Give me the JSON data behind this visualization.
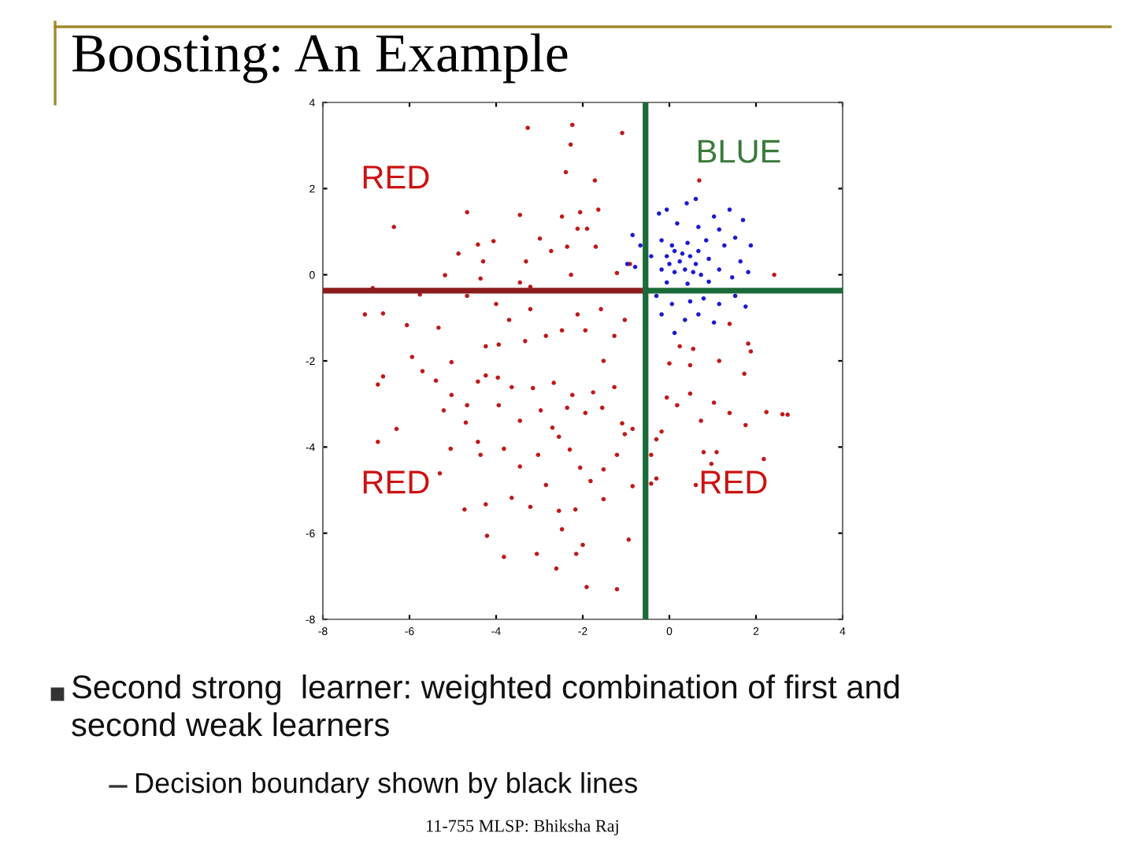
{
  "chart_data": {
    "type": "scatter",
    "title": "Boosting: An Example",
    "xlim": [
      -8,
      4
    ],
    "ylim": [
      -8,
      4
    ],
    "xticks": [
      -8,
      -6,
      -4,
      -2,
      0,
      2,
      4
    ],
    "yticks": [
      -8,
      -6,
      -4,
      -2,
      0,
      2,
      4
    ],
    "grid": false,
    "series": [
      {
        "marker": "circle",
        "color": "#c01818",
        "x": [
          -3.27,
          -2.24,
          -2.28,
          -1.09,
          -2.39,
          -1.72,
          -4.67,
          -3.45,
          -2.48,
          -2.06,
          -1.64,
          -6.36,
          -2.12,
          -1.9,
          -2.99,
          -4.06,
          -4.42,
          -4.87,
          -1.7,
          -2.73,
          -2.36,
          -4.3,
          -3.31,
          -5.18,
          -4.36,
          -3.45,
          -3.21,
          -2.27,
          -1.21,
          -0.91,
          -6.85,
          -5.76,
          -7.03,
          -6.61,
          -6.06,
          -5.33,
          -4.67,
          -4.0,
          -3.7,
          -3.21,
          -2.85,
          -2.48,
          -2.12,
          -1.94,
          -1.58,
          -1.27,
          -1.03,
          -4.24,
          -3.94,
          -3.33,
          -5.03,
          -5.94,
          0.24,
          0.55,
          1.82,
          1.88,
          2.42,
          1.39,
          0.69,
          -6.73,
          -6.61,
          -5.7,
          -5.39,
          -5.21,
          -5.03,
          -4.67,
          -4.7,
          -4.42,
          -4.24,
          -3.96,
          -3.94,
          -3.64,
          -3.45,
          -3.15,
          -2.97,
          -2.7,
          -2.67,
          -2.36,
          -2.24,
          -1.94,
          -1.76,
          -1.55,
          -1.27,
          -1.09,
          -0.85,
          -1.52,
          -6.73,
          -6.3,
          -5.05,
          -5.3,
          -4.42,
          -4.36,
          -3.82,
          -3.45,
          -3.03,
          -2.55,
          -2.3,
          -2.06,
          -1.82,
          -1.52,
          -1.21,
          -1.03,
          -0.85,
          -3.64,
          -4.24,
          -3.21,
          -2.85,
          -2.55,
          -2.17,
          -1.52,
          -4.21,
          -3.82,
          -3.06,
          -2.61,
          -2.48,
          -2.15,
          -2.0,
          -1.91,
          -1.21,
          -0.94,
          -4.73,
          0.0,
          0.48,
          1.15,
          1.73,
          -0.06,
          0.18,
          0.48,
          1.03,
          1.39,
          0.73,
          1.76,
          2.24,
          2.61,
          2.73,
          -0.18,
          -0.3,
          0.79,
          1.09,
          0.97,
          2.18,
          0.61,
          -0.42,
          -0.3,
          -0.42
        ],
        "values": [
          3.41,
          3.48,
          3.02,
          3.29,
          2.38,
          2.19,
          1.45,
          1.39,
          1.35,
          1.45,
          1.51,
          1.11,
          1.07,
          1.07,
          0.84,
          0.78,
          0.7,
          0.49,
          0.65,
          0.55,
          0.65,
          0.31,
          0.31,
          -0.01,
          -0.09,
          -0.18,
          -0.28,
          0.0,
          0.04,
          0.25,
          -0.31,
          -0.46,
          -0.92,
          -0.9,
          -1.17,
          -1.23,
          -0.49,
          -0.68,
          -1.05,
          -0.8,
          -1.42,
          -1.29,
          -0.92,
          -1.29,
          -0.8,
          -1.42,
          -1.05,
          -1.66,
          -1.62,
          -1.54,
          -2.03,
          -1.91,
          -1.66,
          -1.72,
          -1.6,
          -1.78,
          0.0,
          -1.14,
          2.19,
          -2.55,
          -2.36,
          -2.24,
          -2.46,
          -3.15,
          -2.79,
          -3.03,
          -3.43,
          -2.48,
          -2.34,
          -2.39,
          -3.03,
          -2.61,
          -3.39,
          -2.63,
          -3.15,
          -3.55,
          -2.51,
          -3.09,
          -2.79,
          -3.21,
          -2.73,
          -3.09,
          -2.61,
          -3.45,
          -3.58,
          -2.0,
          -3.88,
          -3.58,
          -4.04,
          -4.61,
          -3.88,
          -4.18,
          -4.04,
          -4.45,
          -4.18,
          -3.76,
          -4.06,
          -4.48,
          -4.79,
          -4.52,
          -4.18,
          -3.7,
          -4.91,
          -5.18,
          -5.33,
          -5.39,
          -4.88,
          -5.48,
          -5.45,
          -5.21,
          -6.06,
          -6.55,
          -6.48,
          -6.82,
          -5.91,
          -6.48,
          -6.27,
          -7.25,
          -7.3,
          -6.15,
          -5.45,
          -2.06,
          -2.1,
          -2.0,
          -2.3,
          -2.85,
          -3.03,
          -2.76,
          -2.97,
          -3.21,
          -3.39,
          -3.49,
          -3.19,
          -3.24,
          -3.25,
          -3.64,
          -3.82,
          -4.12,
          -4.12,
          -4.39,
          -4.28,
          -4.88,
          -4.85,
          -4.73,
          -4.18
        ]
      },
      {
        "marker": "circle",
        "color": "#1a1ad0",
        "x": [
          0.61,
          0.4,
          -0.06,
          -0.24,
          1.39,
          1.03,
          0.18,
          0.67,
          1.7,
          1.15,
          -0.85,
          -0.67,
          -0.18,
          0.06,
          0.42,
          0.85,
          1.27,
          1.88,
          1.52,
          -0.42,
          -0.06,
          0.24,
          0.48,
          0.61,
          0.91,
          1.15,
          1.64,
          -0.79,
          -0.18,
          0.12,
          0.36,
          0.73,
          1.45,
          1.82,
          -0.06,
          0.42,
          0.91,
          -0.3,
          0.06,
          0.48,
          0.79,
          1.15,
          1.52,
          -0.18,
          0.36,
          0.67,
          1.03,
          0.12,
          1.76,
          -0.97,
          0.0,
          0.3,
          0.55,
          0.12,
          0.67
        ],
        "values": [
          1.76,
          1.66,
          1.51,
          1.42,
          1.51,
          1.35,
          1.19,
          1.11,
          1.27,
          1.05,
          0.92,
          0.68,
          0.8,
          0.68,
          0.74,
          0.8,
          0.68,
          0.68,
          0.86,
          0.43,
          0.43,
          0.31,
          0.43,
          0.25,
          0.37,
          0.12,
          0.31,
          0.18,
          0.12,
          0.06,
          0.12,
          0.0,
          -0.06,
          0.06,
          -0.18,
          -0.21,
          -0.16,
          -0.49,
          -0.68,
          -0.62,
          -0.55,
          -0.68,
          -0.49,
          -0.92,
          -1.05,
          -0.92,
          -1.11,
          -1.35,
          -0.74,
          0.25,
          0.25,
          0.49,
          0.06,
          0.55,
          0.55
        ]
      },
      {
        "type": "line",
        "color": "#1b6b3a",
        "x": [
          -0.55,
          -0.55
        ],
        "values": [
          4,
          -8
        ]
      },
      {
        "type": "line",
        "color": "#8b1c1c",
        "x": [
          -8,
          -0.55
        ],
        "values": [
          -0.37,
          -0.37
        ]
      },
      {
        "type": "line",
        "color": "#1b6b3a",
        "x": [
          -0.55,
          4
        ],
        "values": [
          -0.37,
          -0.37
        ]
      }
    ],
    "annotations": [
      "BLUE",
      "RED",
      "RED",
      "RED",
      "Second strong  learner: weighted combination of first and\nsecond weak learners",
      "Decision boundary shown by black lines",
      "11-755 MLSP: Bhiksha Raj"
    ]
  }
}
